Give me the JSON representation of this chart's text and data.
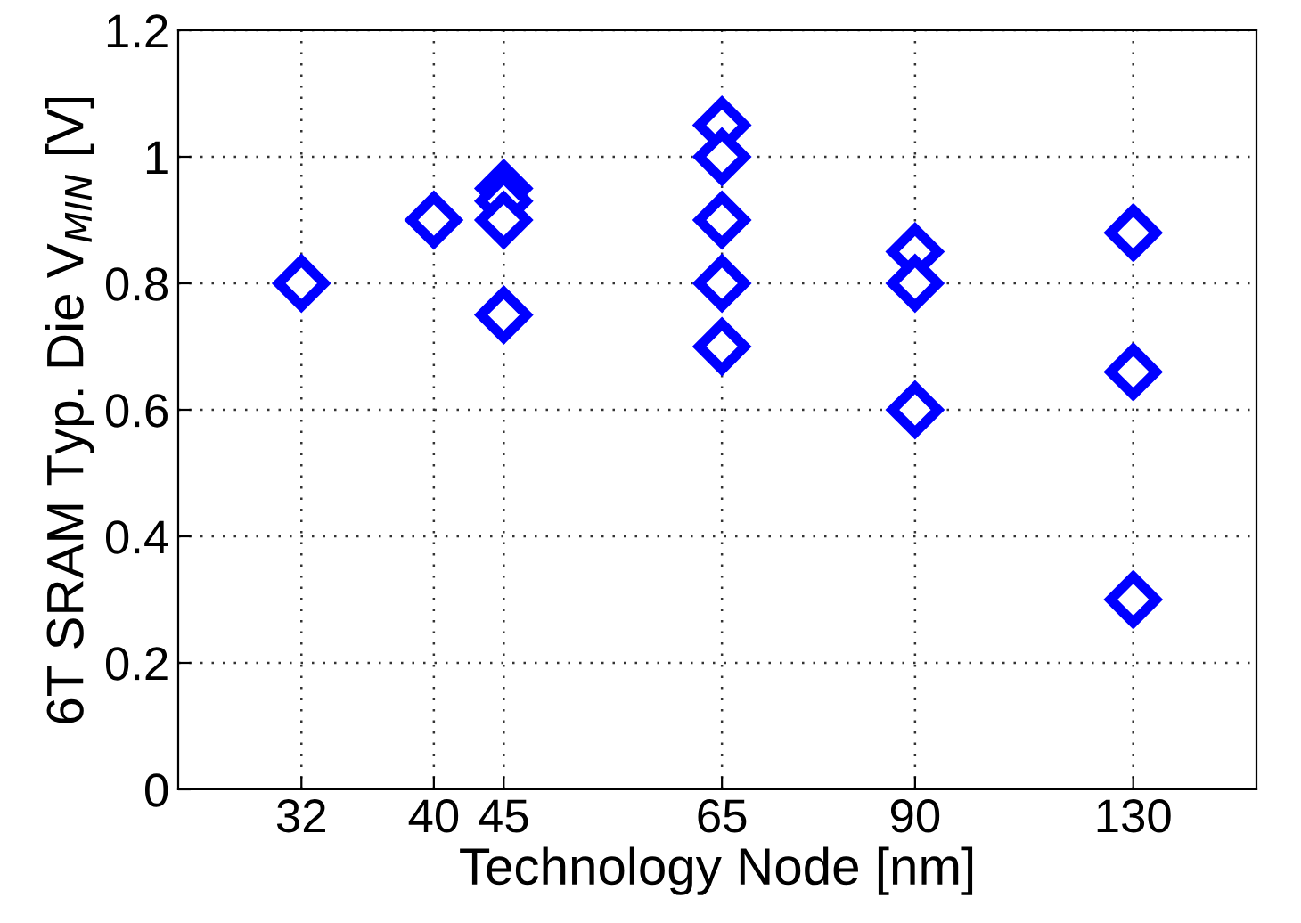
{
  "chart_data": {
    "type": "scatter",
    "xlabel": "Technology Node [nm]",
    "ylabel": "6T SRAM Typ. Die V$_{MIN}$ [V]",
    "x": [
      32,
      40,
      45,
      45,
      45,
      45,
      65,
      65,
      65,
      65,
      65,
      90,
      90,
      90,
      130,
      130,
      130
    ],
    "series": [
      {
        "color": "#0000ff",
        "values": [
          0.8,
          0.9,
          0.95,
          0.93,
          0.9,
          0.75,
          1.05,
          1.0,
          0.9,
          0.8,
          0.7,
          0.85,
          0.8,
          0.6,
          0.88,
          0.66,
          0.3
        ]
      }
    ],
    "log": "x",
    "xlim": [
      26,
      160
    ],
    "xticks": [
      32,
      40,
      45,
      65,
      90,
      130
    ],
    "ylim": [
      0,
      1.2
    ],
    "yticks": [
      0,
      {
        "value": 0.2,
        "label": "0.2"
      },
      {
        "value": 0.4,
        "label": "0.4"
      },
      {
        "value": 0.6,
        "label": "0.6"
      },
      {
        "value": 0.8,
        "label": "0.8"
      },
      1,
      {
        "value": 1.2,
        "label": "1.2"
      }
    ],
    "grid": true,
    "marker": "diamond",
    "legend": false
  }
}
